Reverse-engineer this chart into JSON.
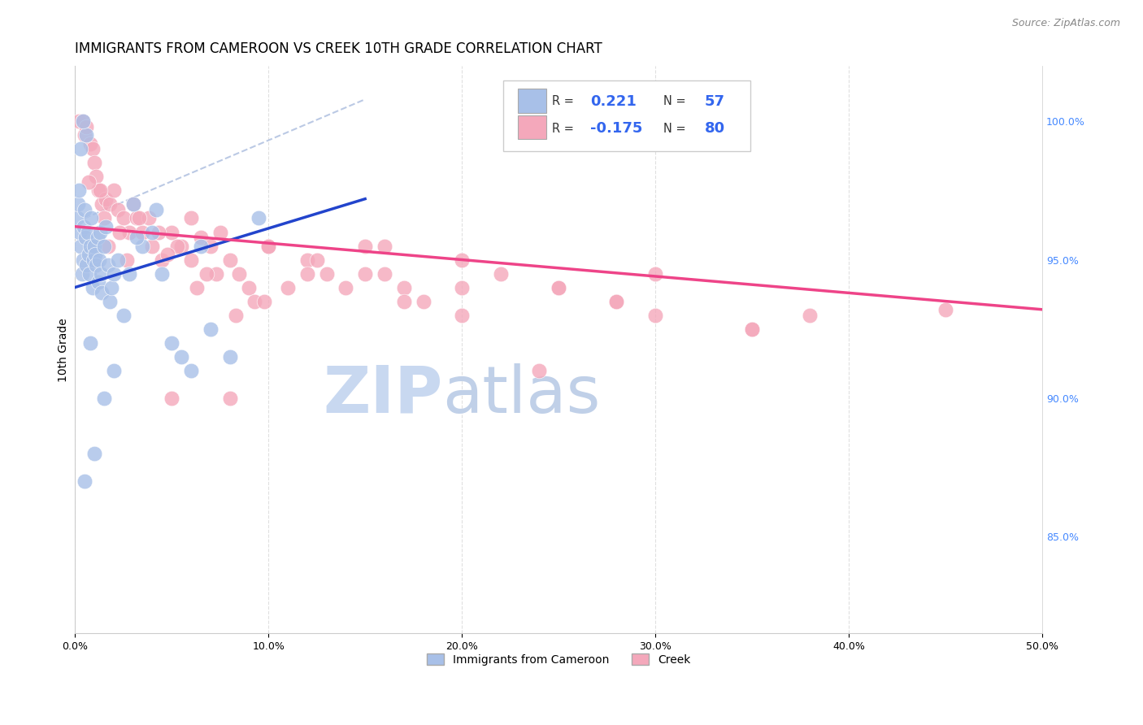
{
  "title": "IMMIGRANTS FROM CAMEROON VS CREEK 10TH GRADE CORRELATION CHART",
  "source": "Source: ZipAtlas.com",
  "ylabel": "10th Grade",
  "xlabel_ticks": [
    "0.0%",
    "10.0%",
    "20.0%",
    "30.0%",
    "40.0%",
    "50.0%"
  ],
  "ylabel_ticks": [
    "85.0%",
    "90.0%",
    "95.0%",
    "100.0%"
  ],
  "xmin": 0.0,
  "xmax": 50.0,
  "ymin": 81.5,
  "ymax": 102.0,
  "legend_r1_val": "0.221",
  "legend_r1_n": "57",
  "legend_r2_val": "-0.175",
  "legend_r2_n": "80",
  "blue_color": "#a8c0e8",
  "pink_color": "#f4a8bb",
  "blue_line_color": "#2244cc",
  "pink_line_color": "#ee4488",
  "blue_dashed_color": "#aabcde",
  "watermark_zip_color": "#c8d8f0",
  "watermark_atlas_color": "#c0d0e8",
  "background_color": "#ffffff",
  "grid_color": "#e0e0e0",
  "blue_line_x0": 0.0,
  "blue_line_y0": 94.0,
  "blue_line_x1": 15.0,
  "blue_line_y1": 97.2,
  "pink_line_x0": 0.0,
  "pink_line_y0": 96.2,
  "pink_line_x1": 50.0,
  "pink_line_y1": 93.2,
  "dashed_line_x0": 0.5,
  "dashed_line_y0": 96.5,
  "dashed_line_x1": 15.0,
  "dashed_line_y1": 100.8,
  "blue_scatter_x": [
    0.1,
    0.15,
    0.2,
    0.25,
    0.3,
    0.35,
    0.4,
    0.45,
    0.5,
    0.55,
    0.6,
    0.65,
    0.7,
    0.75,
    0.8,
    0.85,
    0.9,
    0.95,
    1.0,
    1.05,
    1.1,
    1.15,
    1.2,
    1.25,
    1.3,
    1.35,
    1.4,
    1.5,
    1.6,
    1.7,
    1.8,
    1.9,
    2.0,
    2.2,
    2.5,
    2.8,
    3.0,
    3.5,
    4.0,
    4.5,
    5.0,
    5.5,
    6.0,
    7.0,
    8.0,
    1.0,
    0.5,
    0.8,
    1.5,
    2.0,
    0.3,
    0.6,
    3.2,
    0.4,
    4.2,
    6.5,
    9.5
  ],
  "blue_scatter_y": [
    96.5,
    97.0,
    97.5,
    96.0,
    95.5,
    94.5,
    95.0,
    96.2,
    96.8,
    95.8,
    94.8,
    96.0,
    95.2,
    94.5,
    95.5,
    96.5,
    94.0,
    95.0,
    95.5,
    95.2,
    94.8,
    95.8,
    94.2,
    95.0,
    96.0,
    94.5,
    93.8,
    95.5,
    96.2,
    94.8,
    93.5,
    94.0,
    94.5,
    95.0,
    93.0,
    94.5,
    97.0,
    95.5,
    96.0,
    94.5,
    92.0,
    91.5,
    91.0,
    92.5,
    91.5,
    88.0,
    87.0,
    92.0,
    90.0,
    91.0,
    99.0,
    99.5,
    95.8,
    100.0,
    96.8,
    95.5,
    96.5
  ],
  "pink_scatter_x": [
    0.2,
    0.4,
    0.5,
    0.6,
    0.8,
    0.9,
    1.0,
    1.1,
    1.2,
    1.4,
    1.5,
    1.6,
    1.8,
    2.0,
    2.2,
    2.5,
    2.8,
    3.0,
    3.2,
    3.5,
    3.8,
    4.0,
    4.5,
    5.0,
    5.5,
    6.0,
    6.5,
    7.0,
    7.5,
    8.0,
    8.5,
    9.0,
    10.0,
    11.0,
    12.0,
    13.0,
    14.0,
    15.0,
    16.0,
    17.0,
    18.0,
    20.0,
    22.0,
    25.0,
    28.0,
    30.0,
    35.0,
    38.0,
    1.3,
    2.3,
    3.3,
    4.3,
    5.3,
    6.3,
    7.3,
    8.3,
    9.3,
    0.7,
    1.7,
    2.7,
    4.8,
    6.8,
    9.8,
    12.5,
    16.0,
    20.0,
    25.0,
    30.0,
    6.0,
    10.0,
    15.0,
    20.0,
    28.0,
    35.0,
    45.0,
    5.0,
    8.0,
    12.0,
    17.0,
    24.0
  ],
  "pink_scatter_y": [
    100.0,
    100.0,
    99.5,
    99.8,
    99.2,
    99.0,
    98.5,
    98.0,
    97.5,
    97.0,
    96.5,
    97.2,
    97.0,
    97.5,
    96.8,
    96.5,
    96.0,
    97.0,
    96.5,
    96.0,
    96.5,
    95.5,
    95.0,
    96.0,
    95.5,
    95.0,
    95.8,
    95.5,
    96.0,
    95.0,
    94.5,
    94.0,
    95.5,
    94.0,
    95.0,
    94.5,
    94.0,
    95.5,
    94.5,
    94.0,
    93.5,
    94.0,
    94.5,
    94.0,
    93.5,
    93.0,
    92.5,
    93.0,
    97.5,
    96.0,
    96.5,
    96.0,
    95.5,
    94.0,
    94.5,
    93.0,
    93.5,
    97.8,
    95.5,
    95.0,
    95.2,
    94.5,
    93.5,
    95.0,
    95.5,
    93.0,
    94.0,
    94.5,
    96.5,
    95.5,
    94.5,
    95.0,
    93.5,
    92.5,
    93.2,
    90.0,
    90.0,
    94.5,
    93.5,
    91.0
  ],
  "legend_items": [
    "Immigrants from Cameroon",
    "Creek"
  ],
  "title_fontsize": 12,
  "axis_label_fontsize": 10,
  "tick_fontsize": 9,
  "legend_fontsize": 11
}
